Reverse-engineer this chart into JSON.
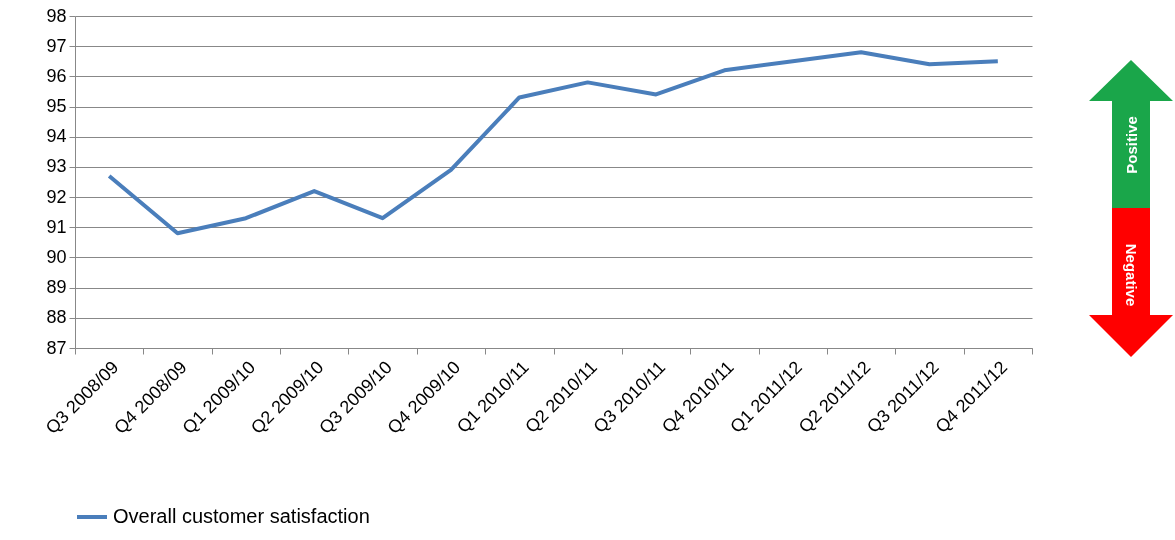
{
  "chart_data": {
    "type": "line",
    "categories": [
      "Q3 2008/09",
      "Q4 2008/09",
      "Q1 2009/10",
      "Q2 2009/10",
      "Q3 2009/10",
      "Q4 2009/10",
      "Q1 2010/11",
      "Q2 2010/11",
      "Q3 2010/11",
      "Q4 2010/11",
      "Q1 2011/12",
      "Q2 2011/12",
      "Q3 2011/12",
      "Q4 2011/12"
    ],
    "series": [
      {
        "name": "Overall customer satisfaction",
        "color": "#4a7ebb",
        "values": [
          92.7,
          90.8,
          91.3,
          92.2,
          91.3,
          92.9,
          95.3,
          95.8,
          95.4,
          96.2,
          96.5,
          96.8,
          96.4,
          96.5
        ]
      }
    ],
    "ylim": [
      87,
      98
    ],
    "yticks": [
      87,
      88,
      89,
      90,
      91,
      92,
      93,
      94,
      95,
      96,
      97,
      98
    ],
    "grid": "y",
    "legend": "bottom",
    "marker": "none",
    "line_style": "solid",
    "annotations": [
      "Positive",
      "Negative"
    ]
  }
}
